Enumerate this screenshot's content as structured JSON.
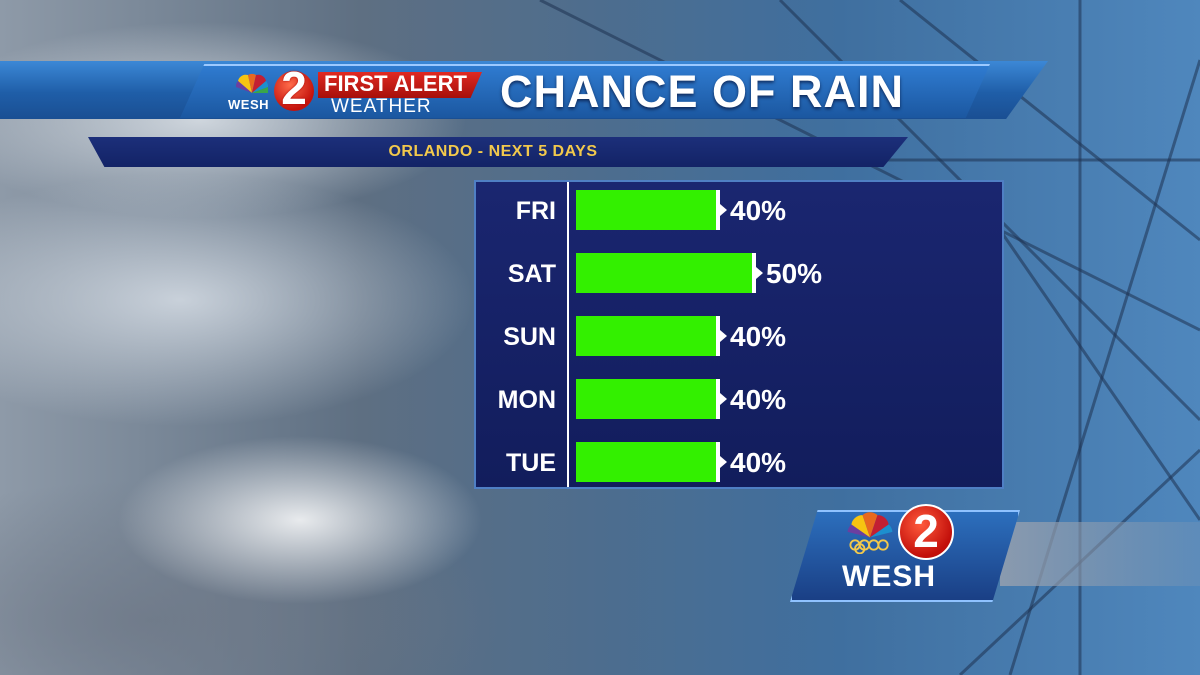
{
  "header": {
    "station_small": "WESH",
    "channel_small": "2",
    "first": "FIRST",
    "alert": "ALERT",
    "weather": "WEATHER",
    "title": "CHANCE OF RAIN",
    "subtitle": "ORLANDO - NEXT 5 DAYS"
  },
  "logo": {
    "station": "WESH",
    "channel": "2"
  },
  "colors": {
    "bar": "#33f000",
    "panel": "#15206a",
    "subtitle_text": "#f2c94c",
    "alert_red": "#d3201a"
  },
  "chart_data": {
    "type": "bar",
    "orientation": "horizontal",
    "title": "CHANCE OF RAIN",
    "subtitle": "ORLANDO - NEXT 5 DAYS",
    "categories": [
      "FRI",
      "SAT",
      "SUN",
      "MON",
      "TUE"
    ],
    "values": [
      40,
      50,
      40,
      40,
      40
    ],
    "labels": [
      "40%",
      "50%",
      "40%",
      "40%",
      "40%"
    ],
    "xlim": [
      0,
      100
    ],
    "grid": false,
    "legend": "none"
  }
}
